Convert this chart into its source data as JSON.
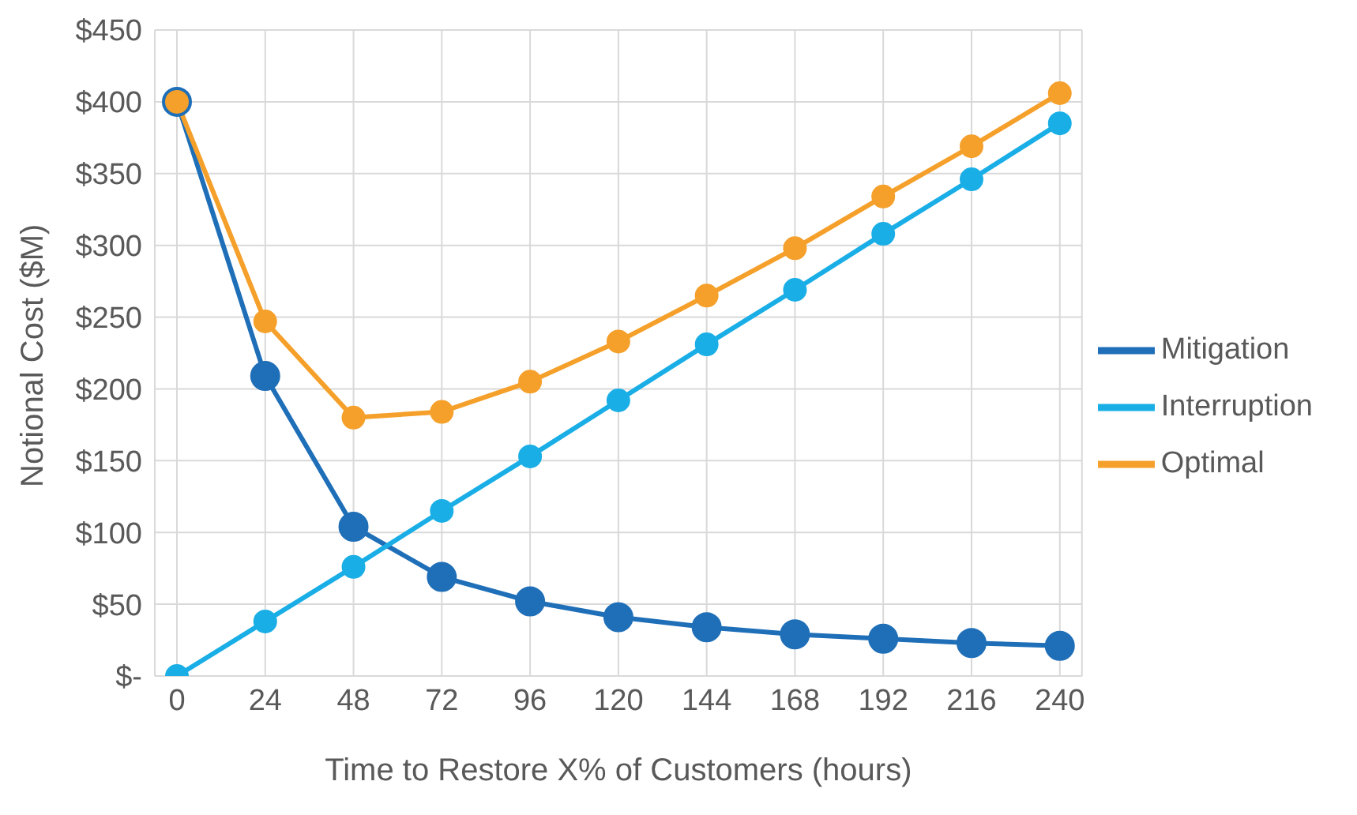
{
  "chart_data": {
    "type": "line",
    "xlabel": "Time to Restore X% of Customers (hours)",
    "ylabel": "Notional Cost ($M)",
    "categories": [
      "0",
      "24",
      "48",
      "72",
      "96",
      "120",
      "144",
      "168",
      "192",
      "216",
      "240"
    ],
    "series": [
      {
        "name": "Mitigation",
        "color": "#1f6fb8",
        "values": [
          400,
          209,
          104,
          69,
          52,
          41,
          34,
          29,
          26,
          23,
          21
        ]
      },
      {
        "name": "Interruption",
        "color": "#1aaee6",
        "values": [
          0,
          38,
          76,
          115,
          153,
          192,
          231,
          269,
          308,
          346,
          385
        ]
      },
      {
        "name": "Optimal",
        "color": "#f5a02a",
        "values": [
          400,
          247,
          180,
          184,
          205,
          233,
          265,
          298,
          334,
          369,
          406
        ]
      }
    ],
    "ylim": [
      0,
      450
    ],
    "yticks": [
      {
        "value": 0,
        "label": "$-"
      },
      {
        "value": 50,
        "label": "$50"
      },
      {
        "value": 100,
        "label": "$100"
      },
      {
        "value": 150,
        "label": "$150"
      },
      {
        "value": 200,
        "label": "$200"
      },
      {
        "value": 250,
        "label": "$250"
      },
      {
        "value": 300,
        "label": "$300"
      },
      {
        "value": 350,
        "label": "$350"
      },
      {
        "value": 400,
        "label": "$400"
      },
      {
        "value": 450,
        "label": "$450"
      }
    ],
    "grid": true,
    "legend": "right",
    "marker": "circle",
    "line_style": "solid"
  }
}
